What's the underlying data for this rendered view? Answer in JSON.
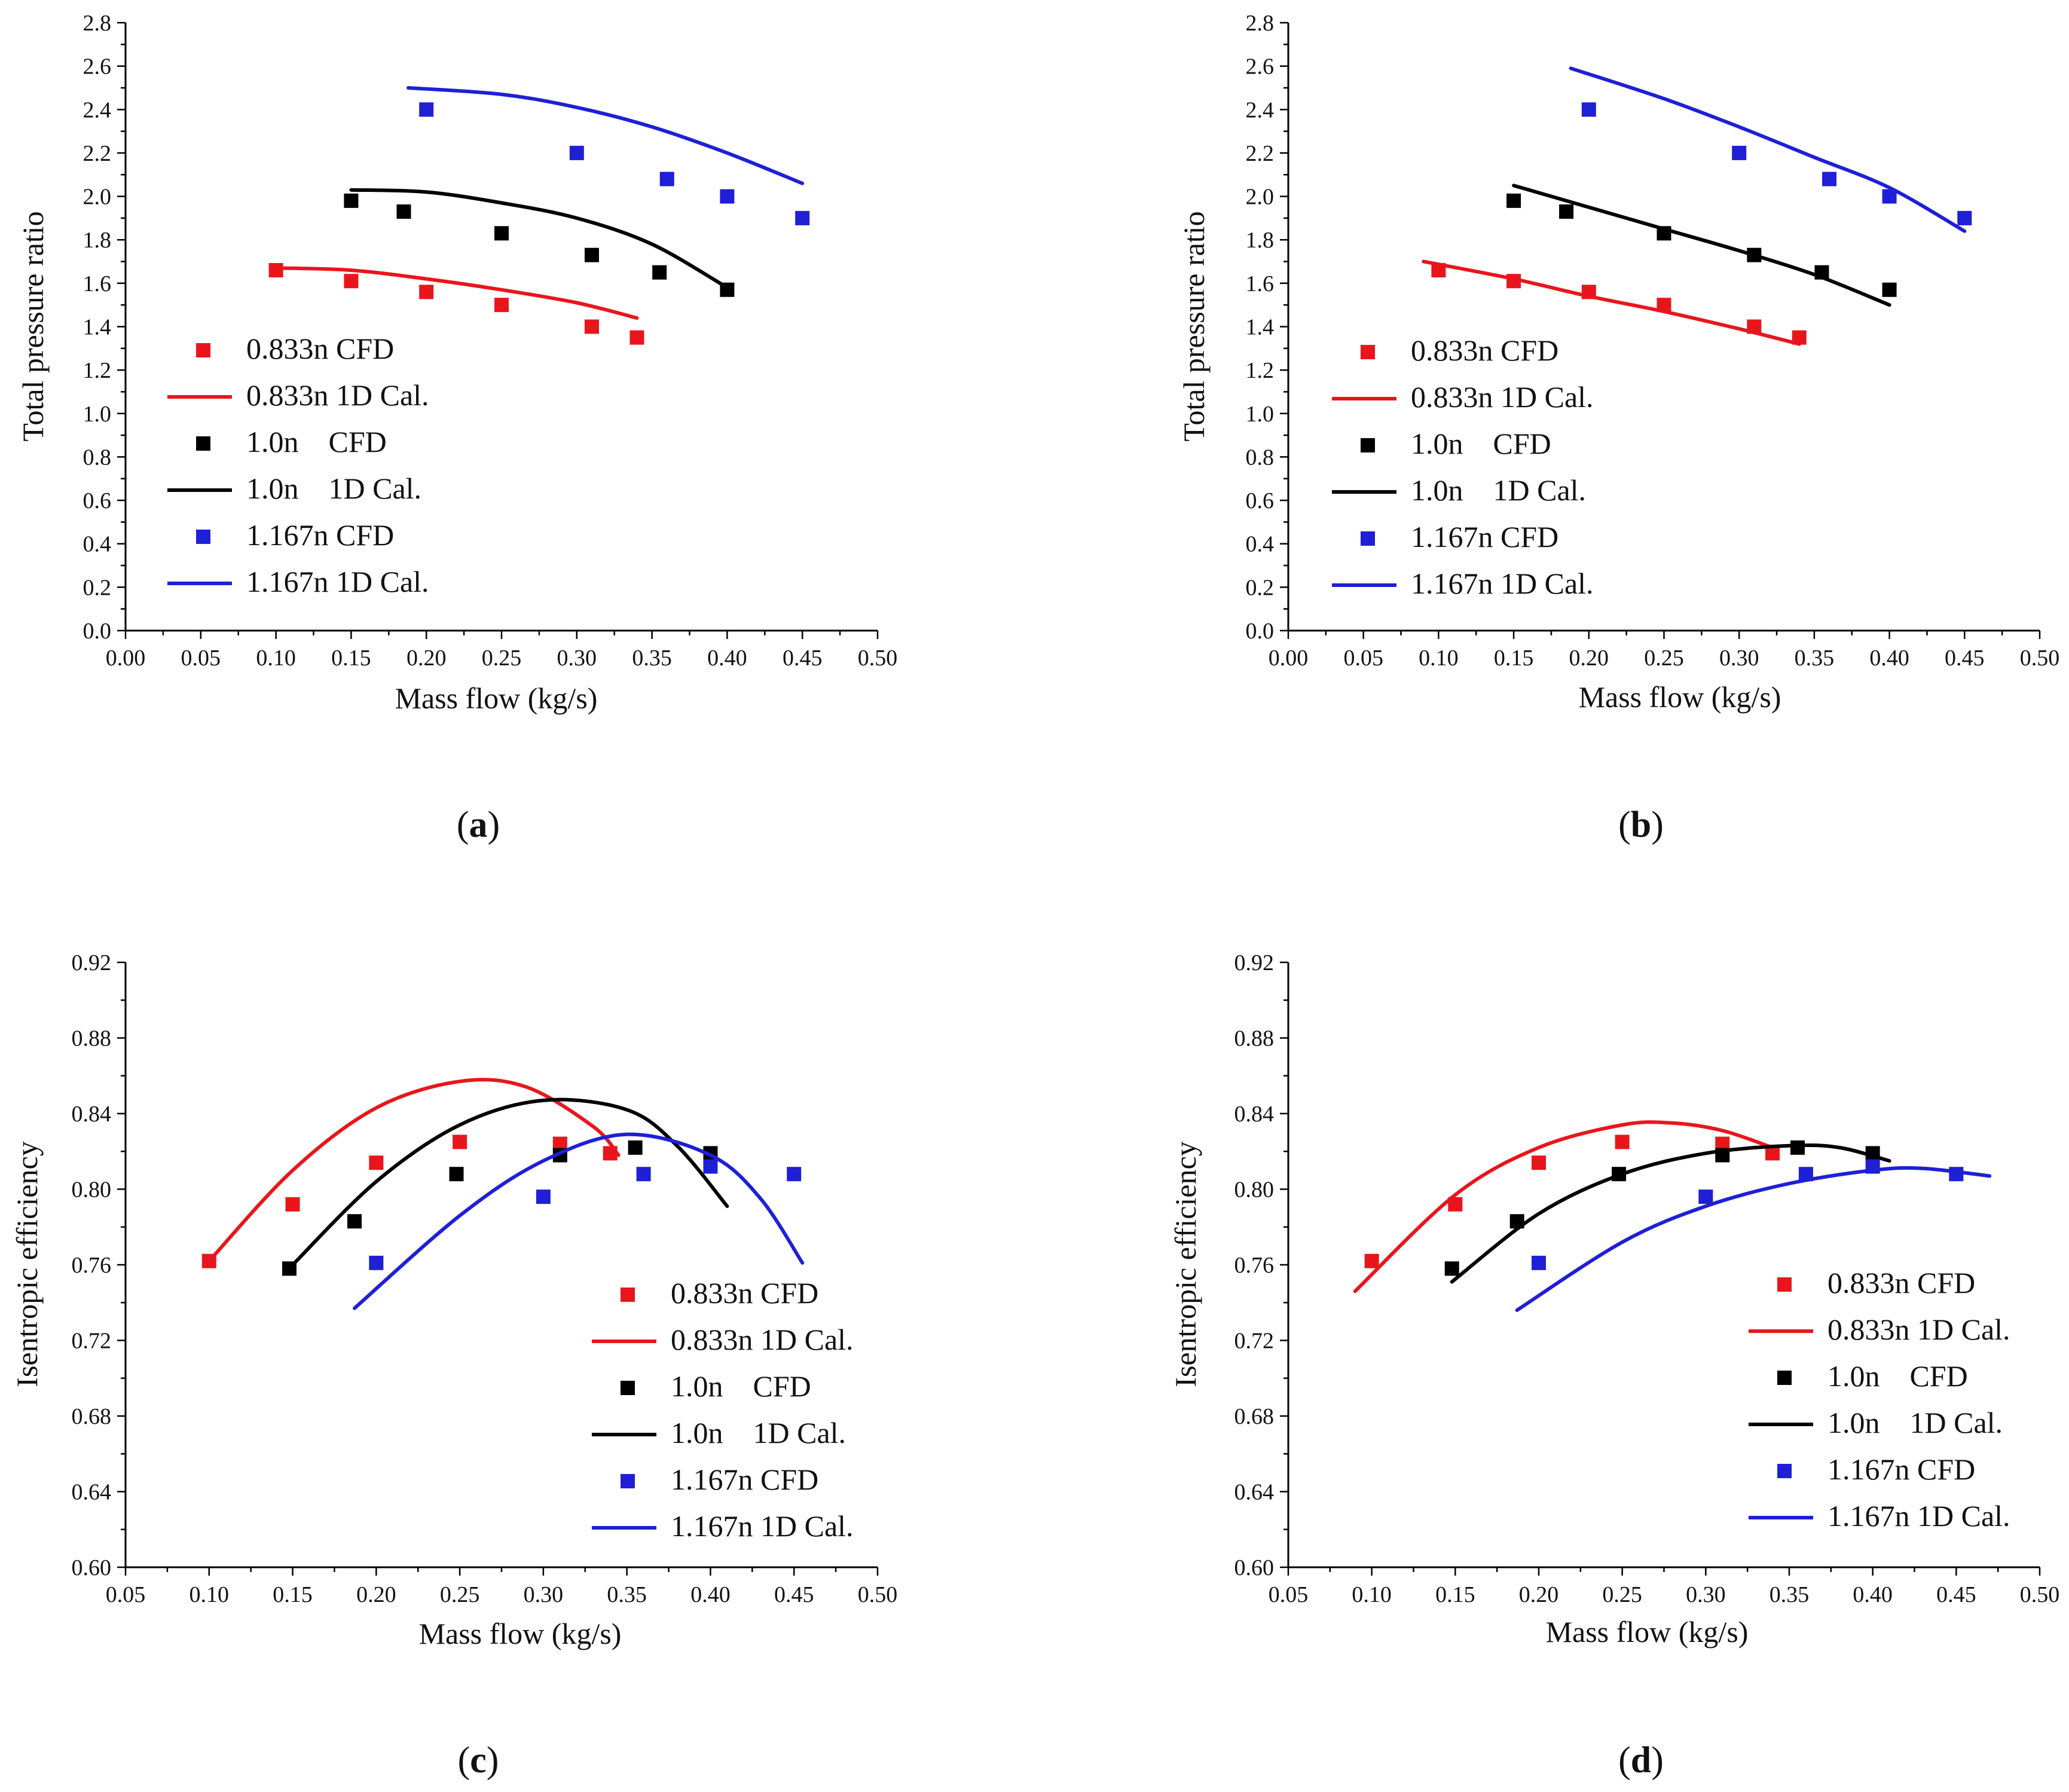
{
  "colors": {
    "s0833": "#e8161c",
    "s10": "#000000",
    "s1167": "#1f1fd6"
  },
  "chart_data": [
    {
      "type": "scatter",
      "panel": "a",
      "panel_label": "a",
      "xlabel": "Mass flow (kg/s)",
      "ylabel": "Total pressure ratio",
      "xlim": [
        0.0,
        0.5
      ],
      "ylim": [
        0.0,
        2.8
      ],
      "xticks": [
        "0.00",
        "0.05",
        "0.10",
        "0.15",
        "0.20",
        "0.25",
        "0.30",
        "0.35",
        "0.40",
        "0.45",
        "0.50"
      ],
      "yticks": [
        "0.0",
        "0.2",
        "0.4",
        "0.6",
        "0.8",
        "1.0",
        "1.2",
        "1.4",
        "1.6",
        "1.8",
        "2.0",
        "2.2",
        "2.4",
        "2.6",
        "2.8"
      ],
      "legend_position": "middle-left",
      "series": [
        {
          "name": "0.833n CFD",
          "kind": "points",
          "color_key": "s0833",
          "x": [
            0.1,
            0.15,
            0.2,
            0.25,
            0.31,
            0.34
          ],
          "y": [
            1.66,
            1.61,
            1.56,
            1.5,
            1.4,
            1.35
          ]
        },
        {
          "name": "0.833n 1D Cal.",
          "kind": "line",
          "color_key": "s0833",
          "x": [
            0.1,
            0.15,
            0.2,
            0.25,
            0.3,
            0.34
          ],
          "y": [
            1.67,
            1.66,
            1.62,
            1.57,
            1.51,
            1.44
          ]
        },
        {
          "name": "1.0n    CFD",
          "kind": "points",
          "color_key": "s10",
          "x": [
            0.15,
            0.185,
            0.25,
            0.31,
            0.355,
            0.4
          ],
          "y": [
            1.98,
            1.93,
            1.83,
            1.73,
            1.65,
            1.57
          ]
        },
        {
          "name": "1.0n    1D Cal.",
          "kind": "line",
          "color_key": "s10",
          "x": [
            0.15,
            0.2,
            0.25,
            0.3,
            0.35,
            0.4
          ],
          "y": [
            2.03,
            2.02,
            1.97,
            1.9,
            1.78,
            1.58
          ]
        },
        {
          "name": "1.167n CFD",
          "kind": "points",
          "color_key": "s1167",
          "x": [
            0.2,
            0.3,
            0.36,
            0.4,
            0.45
          ],
          "y": [
            2.4,
            2.2,
            2.08,
            2.0,
            1.9
          ]
        },
        {
          "name": "1.167n 1D Cal.",
          "kind": "line",
          "color_key": "s1167",
          "x": [
            0.188,
            0.25,
            0.3,
            0.35,
            0.4,
            0.45
          ],
          "y": [
            2.5,
            2.47,
            2.41,
            2.32,
            2.2,
            2.06
          ]
        }
      ]
    },
    {
      "type": "scatter",
      "panel": "b",
      "panel_label": "b",
      "xlabel": "Mass flow (kg/s)",
      "ylabel": "Total pressure ratio",
      "xlim": [
        0.0,
        0.5
      ],
      "ylim": [
        0.0,
        2.8
      ],
      "xticks": [
        "0.00",
        "0.05",
        "0.10",
        "0.15",
        "0.20",
        "0.25",
        "0.30",
        "0.35",
        "0.40",
        "0.45",
        "0.50"
      ],
      "yticks": [
        "0.0",
        "0.2",
        "0.4",
        "0.6",
        "0.8",
        "1.0",
        "1.2",
        "1.4",
        "1.6",
        "1.8",
        "2.0",
        "2.2",
        "2.4",
        "2.6",
        "2.8"
      ],
      "legend_position": "middle-left",
      "series": [
        {
          "name": "0.833n CFD",
          "kind": "points",
          "color_key": "s0833",
          "x": [
            0.1,
            0.15,
            0.2,
            0.25,
            0.31,
            0.34
          ],
          "y": [
            1.66,
            1.61,
            1.56,
            1.5,
            1.4,
            1.35
          ]
        },
        {
          "name": "0.833n 1D Cal.",
          "kind": "line",
          "color_key": "s0833",
          "x": [
            0.09,
            0.15,
            0.2,
            0.25,
            0.3,
            0.34
          ],
          "y": [
            1.7,
            1.62,
            1.54,
            1.47,
            1.39,
            1.32
          ]
        },
        {
          "name": "1.0n    CFD",
          "kind": "points",
          "color_key": "s10",
          "x": [
            0.15,
            0.185,
            0.25,
            0.31,
            0.355,
            0.4
          ],
          "y": [
            1.98,
            1.93,
            1.83,
            1.73,
            1.65,
            1.57
          ]
        },
        {
          "name": "1.0n    1D Cal.",
          "kind": "line",
          "color_key": "s10",
          "x": [
            0.15,
            0.2,
            0.25,
            0.3,
            0.35,
            0.4
          ],
          "y": [
            2.05,
            1.95,
            1.85,
            1.75,
            1.64,
            1.5
          ]
        },
        {
          "name": "1.167n CFD",
          "kind": "points",
          "color_key": "s1167",
          "x": [
            0.2,
            0.3,
            0.36,
            0.4,
            0.45
          ],
          "y": [
            2.4,
            2.2,
            2.08,
            2.0,
            1.9
          ]
        },
        {
          "name": "1.167n 1D Cal.",
          "kind": "line",
          "color_key": "s1167",
          "x": [
            0.188,
            0.25,
            0.3,
            0.35,
            0.4,
            0.45
          ],
          "y": [
            2.59,
            2.45,
            2.32,
            2.18,
            2.04,
            1.84
          ]
        }
      ]
    },
    {
      "type": "scatter",
      "panel": "c",
      "panel_label": "c",
      "xlabel": "Mass flow (kg/s)",
      "ylabel": "Isentropic efficiency",
      "xlim": [
        0.05,
        0.5
      ],
      "ylim": [
        0.6,
        0.92
      ],
      "xticks": [
        "0.05",
        "0.10",
        "0.15",
        "0.20",
        "0.25",
        "0.30",
        "0.35",
        "0.40",
        "0.45",
        "0.50"
      ],
      "yticks": [
        "0.60",
        "0.64",
        "0.68",
        "0.72",
        "0.76",
        "0.80",
        "0.84",
        "0.88",
        "0.92"
      ],
      "legend_position": "bottom-right",
      "series": [
        {
          "name": "0.833n CFD",
          "kind": "points",
          "color_key": "s0833",
          "x": [
            0.1,
            0.15,
            0.2,
            0.25,
            0.31,
            0.34
          ],
          "y": [
            0.762,
            0.792,
            0.814,
            0.825,
            0.824,
            0.819
          ]
        },
        {
          "name": "0.833n 1D Cal.",
          "kind": "line",
          "color_key": "s0833",
          "x": [
            0.1,
            0.15,
            0.2,
            0.25,
            0.29,
            0.33,
            0.345
          ],
          "y": [
            0.762,
            0.81,
            0.843,
            0.857,
            0.854,
            0.833,
            0.818
          ]
        },
        {
          "name": "1.0n    CFD",
          "kind": "points",
          "color_key": "s10",
          "x": [
            0.148,
            0.187,
            0.248,
            0.31,
            0.355,
            0.4
          ],
          "y": [
            0.758,
            0.783,
            0.808,
            0.818,
            0.822,
            0.819
          ]
        },
        {
          "name": "1.0n    1D Cal.",
          "kind": "line",
          "color_key": "s10",
          "x": [
            0.15,
            0.2,
            0.25,
            0.3,
            0.35,
            0.38,
            0.41
          ],
          "y": [
            0.76,
            0.804,
            0.834,
            0.847,
            0.842,
            0.823,
            0.791
          ]
        },
        {
          "name": "1.167n CFD",
          "kind": "points",
          "color_key": "s1167",
          "x": [
            0.2,
            0.3,
            0.36,
            0.4,
            0.45
          ],
          "y": [
            0.761,
            0.796,
            0.808,
            0.812,
            0.808
          ]
        },
        {
          "name": "1.167n 1D Cal.",
          "kind": "line",
          "color_key": "s1167",
          "x": [
            0.187,
            0.25,
            0.3,
            0.35,
            0.4,
            0.43,
            0.455
          ],
          "y": [
            0.737,
            0.786,
            0.815,
            0.829,
            0.818,
            0.795,
            0.761
          ]
        }
      ]
    },
    {
      "type": "scatter",
      "panel": "d",
      "panel_label": "d",
      "xlabel": "Mass flow (kg/s)",
      "ylabel": "Isentropic efficiency",
      "xlim": [
        0.05,
        0.5
      ],
      "ylim": [
        0.6,
        0.92
      ],
      "xticks": [
        "0.05",
        "0.10",
        "0.15",
        "0.20",
        "0.25",
        "0.30",
        "0.35",
        "0.40",
        "0.45",
        "0.50"
      ],
      "yticks": [
        "0.60",
        "0.64",
        "0.68",
        "0.72",
        "0.76",
        "0.80",
        "0.84",
        "0.88",
        "0.92"
      ],
      "legend_position": "bottom-right",
      "series": [
        {
          "name": "0.833n CFD",
          "kind": "points",
          "color_key": "s0833",
          "x": [
            0.1,
            0.15,
            0.2,
            0.25,
            0.31,
            0.34
          ],
          "y": [
            0.762,
            0.792,
            0.814,
            0.825,
            0.824,
            0.819
          ]
        },
        {
          "name": "0.833n 1D Cal.",
          "kind": "line",
          "color_key": "s0833",
          "x": [
            0.09,
            0.15,
            0.2,
            0.25,
            0.28,
            0.31,
            0.34
          ],
          "y": [
            0.746,
            0.797,
            0.822,
            0.834,
            0.835,
            0.831,
            0.822
          ]
        },
        {
          "name": "1.0n    CFD",
          "kind": "points",
          "color_key": "s10",
          "x": [
            0.148,
            0.187,
            0.248,
            0.31,
            0.355,
            0.4
          ],
          "y": [
            0.758,
            0.783,
            0.808,
            0.818,
            0.822,
            0.819
          ]
        },
        {
          "name": "1.0n    1D Cal.",
          "kind": "line",
          "color_key": "s10",
          "x": [
            0.148,
            0.2,
            0.25,
            0.3,
            0.35,
            0.38,
            0.41
          ],
          "y": [
            0.751,
            0.787,
            0.808,
            0.819,
            0.823,
            0.822,
            0.815
          ]
        },
        {
          "name": "1.167n CFD",
          "kind": "points",
          "color_key": "s1167",
          "x": [
            0.2,
            0.3,
            0.36,
            0.4,
            0.45
          ],
          "y": [
            0.761,
            0.796,
            0.808,
            0.812,
            0.808
          ]
        },
        {
          "name": "1.167n 1D Cal.",
          "kind": "line",
          "color_key": "s1167",
          "x": [
            0.187,
            0.25,
            0.3,
            0.35,
            0.4,
            0.43,
            0.47
          ],
          "y": [
            0.736,
            0.772,
            0.791,
            0.803,
            0.81,
            0.811,
            0.807
          ]
        }
      ]
    }
  ]
}
